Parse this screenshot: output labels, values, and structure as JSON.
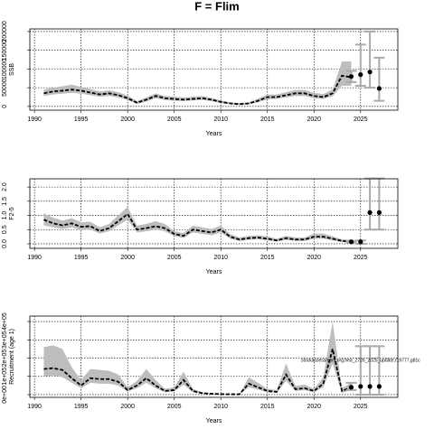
{
  "chart_data": [
    {
      "type": "line",
      "title": "F = Flim",
      "ylabel": "SSB",
      "xlabel": "Years",
      "xlim": [
        1989.5,
        2029
      ],
      "xticks": [
        1990,
        1995,
        2000,
        2005,
        2010,
        2015,
        2020,
        2025
      ],
      "ylim": [
        -10000,
        207000
      ],
      "yticks": [
        0,
        50000,
        100000,
        150000,
        200000
      ],
      "grid": true,
      "x": [
        1991,
        1992,
        1993,
        1994,
        1995,
        1996,
        1997,
        1998,
        1999,
        2000,
        2001,
        2002,
        2003,
        2004,
        2005,
        2006,
        2007,
        2008,
        2009,
        2010,
        2011,
        2012,
        2013,
        2014,
        2015,
        2016,
        2017,
        2018,
        2019,
        2020,
        2021,
        2022,
        2023,
        2024
      ],
      "series": [
        {
          "color": "#000000",
          "values": [
            35000,
            40000,
            42000,
            45000,
            42000,
            37000,
            32000,
            35000,
            30000,
            22000,
            10000,
            18000,
            28000,
            22000,
            20000,
            18000,
            20000,
            22000,
            18000,
            12000,
            8000,
            6000,
            8000,
            15000,
            25000,
            25000,
            30000,
            35000,
            35000,
            28000,
            25000,
            35000,
            82000,
            78000
          ],
          "band": {
            "color": "#bdbdbd",
            "lower": [
              28000,
              32000,
              34000,
              36000,
              34000,
              30000,
              26000,
              28000,
              24000,
              17000,
              7000,
              13000,
              22000,
              17000,
              15000,
              14000,
              16000,
              17000,
              14000,
              9000,
              6000,
              4000,
              6000,
              11000,
              19000,
              20000,
              24000,
              28000,
              28000,
              22000,
              20000,
              27000,
              55000,
              55000
            ],
            "upper": [
              45000,
              50000,
              54000,
              58000,
              52000,
              46000,
              40000,
              43000,
              38000,
              29000,
              14000,
              24000,
              35000,
              28000,
              26000,
              24000,
              26000,
              28000,
              23000,
              16000,
              11000,
              9000,
              11000,
              21000,
              32000,
              32000,
              38000,
              44000,
              44000,
              36000,
              33000,
              45000,
              120000,
              120000
            ]
          }
        }
      ],
      "projection": {
        "color": "#000000",
        "bar_color": "#aaaaaa",
        "x": [
          2024,
          2025,
          2026,
          2027
        ],
        "values": [
          80000,
          85000,
          92000,
          48000
        ],
        "lower": [
          65000,
          55000,
          50000,
          15000
        ],
        "upper": [
          95000,
          165000,
          200000,
          130000
        ]
      }
    },
    {
      "type": "line",
      "ylabel": "F2-5",
      "xlabel": "Years",
      "xlim": [
        1989.5,
        2029
      ],
      "xticks": [
        1990,
        1995,
        2000,
        2005,
        2010,
        2015,
        2020,
        2025
      ],
      "ylim": [
        -0.16,
        2.29
      ],
      "yticks": [
        {
          "value": 0,
          "label": "0.0"
        },
        {
          "value": 0.5,
          "label": "0.5"
        },
        {
          "value": 1,
          "label": "1.0"
        },
        {
          "value": 1.5,
          "label": "1.5"
        },
        {
          "value": 2,
          "label": "2.0"
        }
      ],
      "grid": true,
      "x": [
        1991,
        1992,
        1993,
        1994,
        1995,
        1996,
        1997,
        1998,
        1999,
        2000,
        2001,
        2002,
        2003,
        2004,
        2005,
        2006,
        2007,
        2008,
        2009,
        2010,
        2011,
        2012,
        2013,
        2014,
        2015,
        2016,
        2017,
        2018,
        2019,
        2020,
        2021,
        2022,
        2023,
        2024
      ],
      "series": [
        {
          "color": "#000000",
          "values": [
            0.85,
            0.72,
            0.65,
            0.72,
            0.6,
            0.62,
            0.45,
            0.55,
            0.8,
            1.05,
            0.5,
            0.55,
            0.62,
            0.55,
            0.35,
            0.28,
            0.5,
            0.45,
            0.4,
            0.5,
            0.25,
            0.15,
            0.2,
            0.22,
            0.18,
            0.12,
            0.2,
            0.15,
            0.15,
            0.25,
            0.25,
            0.18,
            0.1,
            0.08
          ],
          "band": {
            "color": "#bdbdbd",
            "lower": [
              0.65,
              0.58,
              0.52,
              0.58,
              0.48,
              0.5,
              0.36,
              0.44,
              0.65,
              0.85,
              0.4,
              0.44,
              0.5,
              0.44,
              0.27,
              0.2,
              0.4,
              0.35,
              0.3,
              0.4,
              0.18,
              0.1,
              0.14,
              0.16,
              0.12,
              0.08,
              0.14,
              0.1,
              0.1,
              0.18,
              0.18,
              0.12,
              0.06,
              0.05
            ],
            "upper": [
              1.08,
              0.92,
              0.82,
              0.9,
              0.76,
              0.78,
              0.58,
              0.7,
              1.0,
              1.3,
              0.64,
              0.7,
              0.8,
              0.7,
              0.45,
              0.38,
              0.64,
              0.58,
              0.52,
              0.64,
              0.34,
              0.22,
              0.28,
              0.3,
              0.26,
              0.18,
              0.28,
              0.22,
              0.22,
              0.36,
              0.36,
              0.26,
              0.16,
              0.14
            ]
          }
        }
      ],
      "projection": {
        "color": "#000000",
        "bar_color": "#aaaaaa",
        "x": [
          2024,
          2025,
          2026,
          2027
        ],
        "values": [
          0.07,
          0.07,
          1.1,
          1.1
        ],
        "lower": [
          0.05,
          0.0,
          0.5,
          0.5
        ],
        "upper": [
          0.1,
          0.12,
          2.3,
          2.3
        ]
      }
    },
    {
      "type": "line",
      "ylabel": "Recruitment (age 1)",
      "xlabel": "Years",
      "annotation": "stockassessment.org,hea_2726_2025_update,r19777,g81c",
      "xlim": [
        1989.5,
        2029
      ],
      "xticks": [
        1990,
        1995,
        2000,
        2005,
        2010,
        2015,
        2020,
        2025
      ],
      "ylim": [
        -15000,
        430000
      ],
      "yticks": [
        {
          "value": 0,
          "label": "0e+00"
        },
        {
          "value": 100000,
          "label": "1e+05"
        },
        {
          "value": 200000,
          "label": "2e+05"
        },
        {
          "value": 300000,
          "label": "3e+05"
        },
        {
          "value": 400000,
          "label": "4e+05"
        }
      ],
      "grid": true,
      "x": [
        1991,
        1992,
        1993,
        1994,
        1995,
        1996,
        1997,
        1998,
        1999,
        2000,
        2001,
        2002,
        2003,
        2004,
        2005,
        2006,
        2007,
        2008,
        2009,
        2010,
        2011,
        2012,
        2013,
        2014,
        2015,
        2016,
        2017,
        2018,
        2019,
        2020,
        2021,
        2022,
        2023,
        2024
      ],
      "series": [
        {
          "color": "#000000",
          "values": [
            140000,
            145000,
            135000,
            90000,
            50000,
            90000,
            85000,
            85000,
            70000,
            25000,
            50000,
            90000,
            50000,
            20000,
            25000,
            80000,
            20000,
            8000,
            5000,
            3000,
            2000,
            2000,
            60000,
            40000,
            20000,
            15000,
            110000,
            30000,
            35000,
            20000,
            60000,
            250000,
            20000,
            40000
          ],
          "band": {
            "color": "#bdbdbd",
            "lower": [
              100000,
              105000,
              95000,
              65000,
              35000,
              65000,
              60000,
              60000,
              50000,
              17000,
              35000,
              65000,
              35000,
              13000,
              17000,
              55000,
              13000,
              5000,
              3000,
              1500,
              1000,
              1000,
              40000,
              27000,
              13000,
              10000,
              75000,
              20000,
              24000,
              13000,
              40000,
              170000,
              10000,
              25000
            ],
            "upper": [
              260000,
              270000,
              250000,
              150000,
              80000,
              140000,
              135000,
              130000,
              110000,
              40000,
              75000,
              140000,
              80000,
              32000,
              40000,
              125000,
              32000,
              13000,
              8000,
              5000,
              3500,
              3500,
              95000,
              65000,
              32000,
              25000,
              170000,
              48000,
              55000,
              32000,
              95000,
              400000,
              35000,
              65000
            ]
          }
        }
      ],
      "projection": {
        "color": "#000000",
        "bar_color": "#aaaaaa",
        "x": [
          2024,
          2025,
          2026,
          2027
        ],
        "values": [
          40000,
          45000,
          45000,
          45000
        ],
        "lower": [
          25000,
          0,
          0,
          0
        ],
        "upper": [
          65000,
          265000,
          265000,
          265000
        ]
      }
    }
  ]
}
